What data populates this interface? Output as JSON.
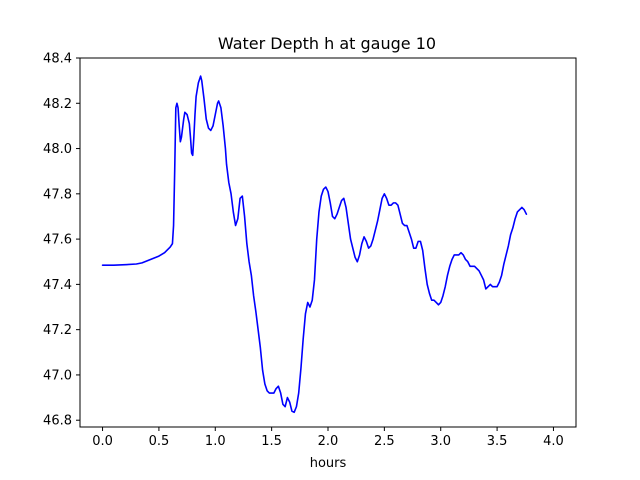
{
  "chart_data": {
    "type": "line",
    "title": "Water Depth h at gauge 10",
    "xlabel": "hours",
    "ylabel": "",
    "xlim": [
      -0.2,
      4.2
    ],
    "ylim": [
      46.77,
      48.4
    ],
    "x_ticks": [
      "0.0",
      "0.5",
      "1.0",
      "1.5",
      "2.0",
      "2.5",
      "3.0",
      "3.5",
      "4.0"
    ],
    "y_ticks": [
      "46.8",
      "47.0",
      "47.2",
      "47.4",
      "47.6",
      "47.8",
      "48.0",
      "48.2",
      "48.4"
    ],
    "grid": false,
    "series": [
      {
        "color": "#0000ff",
        "points": [
          [
            0.0,
            47.485
          ],
          [
            0.1,
            47.485
          ],
          [
            0.2,
            47.487
          ],
          [
            0.3,
            47.49
          ],
          [
            0.35,
            47.495
          ],
          [
            0.4,
            47.505
          ],
          [
            0.45,
            47.515
          ],
          [
            0.5,
            47.525
          ],
          [
            0.55,
            47.54
          ],
          [
            0.58,
            47.555
          ],
          [
            0.6,
            47.565
          ],
          [
            0.62,
            47.58
          ],
          [
            0.63,
            47.66
          ],
          [
            0.64,
            47.9
          ],
          [
            0.65,
            48.18
          ],
          [
            0.66,
            48.2
          ],
          [
            0.67,
            48.18
          ],
          [
            0.68,
            48.1
          ],
          [
            0.69,
            48.03
          ],
          [
            0.7,
            48.05
          ],
          [
            0.72,
            48.13
          ],
          [
            0.73,
            48.16
          ],
          [
            0.75,
            48.15
          ],
          [
            0.77,
            48.11
          ],
          [
            0.78,
            48.05
          ],
          [
            0.79,
            47.98
          ],
          [
            0.8,
            47.97
          ],
          [
            0.81,
            48.05
          ],
          [
            0.82,
            48.15
          ],
          [
            0.83,
            48.23
          ],
          [
            0.85,
            48.29
          ],
          [
            0.87,
            48.32
          ],
          [
            0.88,
            48.3
          ],
          [
            0.9,
            48.22
          ],
          [
            0.92,
            48.13
          ],
          [
            0.94,
            48.09
          ],
          [
            0.96,
            48.08
          ],
          [
            0.98,
            48.1
          ],
          [
            1.0,
            48.15
          ],
          [
            1.02,
            48.2
          ],
          [
            1.03,
            48.21
          ],
          [
            1.05,
            48.18
          ],
          [
            1.07,
            48.1
          ],
          [
            1.09,
            48.0
          ],
          [
            1.1,
            47.93
          ],
          [
            1.12,
            47.85
          ],
          [
            1.14,
            47.8
          ],
          [
            1.16,
            47.72
          ],
          [
            1.18,
            47.66
          ],
          [
            1.2,
            47.69
          ],
          [
            1.22,
            47.78
          ],
          [
            1.24,
            47.79
          ],
          [
            1.26,
            47.7
          ],
          [
            1.28,
            47.58
          ],
          [
            1.3,
            47.5
          ],
          [
            1.32,
            47.44
          ],
          [
            1.34,
            47.35
          ],
          [
            1.36,
            47.28
          ],
          [
            1.38,
            47.2
          ],
          [
            1.4,
            47.12
          ],
          [
            1.42,
            47.02
          ],
          [
            1.44,
            46.96
          ],
          [
            1.46,
            46.93
          ],
          [
            1.48,
            46.92
          ],
          [
            1.5,
            46.92
          ],
          [
            1.52,
            46.92
          ],
          [
            1.54,
            46.94
          ],
          [
            1.56,
            46.95
          ],
          [
            1.58,
            46.92
          ],
          [
            1.6,
            46.87
          ],
          [
            1.62,
            46.86
          ],
          [
            1.64,
            46.9
          ],
          [
            1.66,
            46.88
          ],
          [
            1.68,
            46.84
          ],
          [
            1.7,
            46.835
          ],
          [
            1.72,
            46.86
          ],
          [
            1.74,
            46.92
          ],
          [
            1.76,
            47.03
          ],
          [
            1.78,
            47.16
          ],
          [
            1.8,
            47.27
          ],
          [
            1.82,
            47.32
          ],
          [
            1.84,
            47.3
          ],
          [
            1.86,
            47.33
          ],
          [
            1.88,
            47.42
          ],
          [
            1.9,
            47.6
          ],
          [
            1.92,
            47.72
          ],
          [
            1.94,
            47.79
          ],
          [
            1.96,
            47.82
          ],
          [
            1.98,
            47.83
          ],
          [
            2.0,
            47.81
          ],
          [
            2.02,
            47.76
          ],
          [
            2.04,
            47.7
          ],
          [
            2.06,
            47.69
          ],
          [
            2.08,
            47.71
          ],
          [
            2.1,
            47.74
          ],
          [
            2.12,
            47.77
          ],
          [
            2.14,
            47.78
          ],
          [
            2.16,
            47.74
          ],
          [
            2.18,
            47.67
          ],
          [
            2.2,
            47.6
          ],
          [
            2.22,
            47.56
          ],
          [
            2.24,
            47.52
          ],
          [
            2.26,
            47.5
          ],
          [
            2.28,
            47.53
          ],
          [
            2.3,
            47.58
          ],
          [
            2.32,
            47.61
          ],
          [
            2.34,
            47.59
          ],
          [
            2.36,
            47.56
          ],
          [
            2.38,
            47.57
          ],
          [
            2.4,
            47.6
          ],
          [
            2.42,
            47.64
          ],
          [
            2.44,
            47.68
          ],
          [
            2.46,
            47.73
          ],
          [
            2.48,
            47.78
          ],
          [
            2.5,
            47.8
          ],
          [
            2.52,
            47.78
          ],
          [
            2.54,
            47.75
          ],
          [
            2.56,
            47.75
          ],
          [
            2.58,
            47.76
          ],
          [
            2.6,
            47.76
          ],
          [
            2.62,
            47.75
          ],
          [
            2.64,
            47.71
          ],
          [
            2.66,
            47.67
          ],
          [
            2.68,
            47.66
          ],
          [
            2.7,
            47.66
          ],
          [
            2.72,
            47.63
          ],
          [
            2.74,
            47.6
          ],
          [
            2.76,
            47.56
          ],
          [
            2.78,
            47.56
          ],
          [
            2.8,
            47.59
          ],
          [
            2.82,
            47.59
          ],
          [
            2.84,
            47.55
          ],
          [
            2.86,
            47.47
          ],
          [
            2.88,
            47.4
          ],
          [
            2.9,
            47.36
          ],
          [
            2.92,
            47.33
          ],
          [
            2.94,
            47.33
          ],
          [
            2.96,
            47.32
          ],
          [
            2.98,
            47.31
          ],
          [
            3.0,
            47.32
          ],
          [
            3.02,
            47.35
          ],
          [
            3.04,
            47.39
          ],
          [
            3.06,
            47.44
          ],
          [
            3.08,
            47.48
          ],
          [
            3.1,
            47.51
          ],
          [
            3.12,
            47.53
          ],
          [
            3.14,
            47.53
          ],
          [
            3.16,
            47.53
          ],
          [
            3.18,
            47.54
          ],
          [
            3.2,
            47.53
          ],
          [
            3.22,
            47.51
          ],
          [
            3.24,
            47.5
          ],
          [
            3.26,
            47.48
          ],
          [
            3.28,
            47.48
          ],
          [
            3.3,
            47.48
          ],
          [
            3.32,
            47.47
          ],
          [
            3.34,
            47.46
          ],
          [
            3.36,
            47.44
          ],
          [
            3.38,
            47.42
          ],
          [
            3.4,
            47.38
          ],
          [
            3.42,
            47.39
          ],
          [
            3.44,
            47.4
          ],
          [
            3.46,
            47.39
          ],
          [
            3.48,
            47.39
          ],
          [
            3.5,
            47.39
          ],
          [
            3.52,
            47.41
          ],
          [
            3.54,
            47.44
          ],
          [
            3.56,
            47.49
          ],
          [
            3.58,
            47.53
          ],
          [
            3.6,
            47.57
          ],
          [
            3.62,
            47.62
          ],
          [
            3.64,
            47.65
          ],
          [
            3.66,
            47.69
          ],
          [
            3.68,
            47.72
          ],
          [
            3.7,
            47.73
          ],
          [
            3.72,
            47.74
          ],
          [
            3.74,
            47.73
          ],
          [
            3.76,
            47.71
          ]
        ]
      }
    ]
  }
}
